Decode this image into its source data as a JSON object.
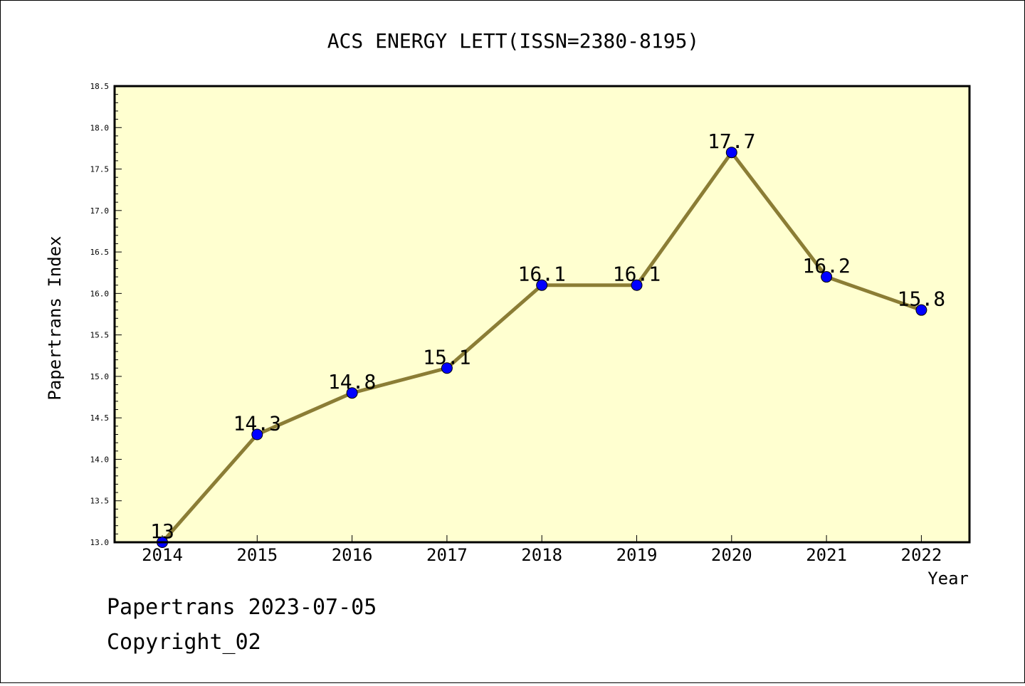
{
  "chart_data": {
    "type": "line",
    "title": "ACS ENERGY LETT(ISSN=2380-8195)",
    "xlabel": "Year",
    "ylabel": "Papertrans Index",
    "categories": [
      "2014",
      "2015",
      "2016",
      "2017",
      "2018",
      "2019",
      "2020",
      "2021",
      "2022"
    ],
    "series": [
      {
        "values": [
          13,
          14.3,
          14.8,
          15.1,
          16.1,
          16.1,
          17.7,
          16.2,
          15.8
        ]
      }
    ],
    "data_labels": [
      "13",
      "14.3",
      "14.8",
      "15.1",
      "16.1",
      "16.1",
      "17.7",
      "16.2",
      "15.8"
    ],
    "ylim": [
      13.0,
      18.5
    ],
    "y_ticks": [
      "13.0",
      "13.5",
      "14.0",
      "14.5",
      "15.0",
      "15.5",
      "16.0",
      "16.5",
      "17.0",
      "17.5",
      "18.0",
      "18.5"
    ],
    "grid": false,
    "legend": "none",
    "colors": {
      "line": "#8b7d35",
      "marker": "#0000ff",
      "plot_background": "#ffffd0"
    }
  },
  "footer": {
    "line1": "Papertrans 2023-07-05",
    "line2": "Copyright_02"
  }
}
